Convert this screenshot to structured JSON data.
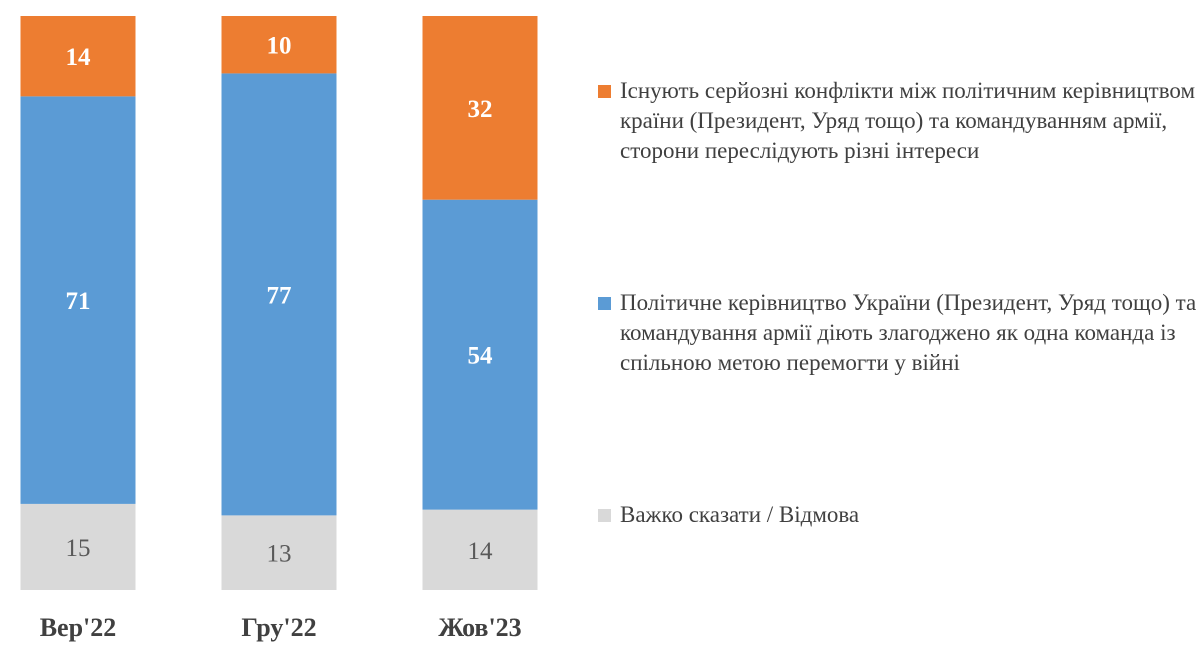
{
  "chart_data": {
    "type": "bar",
    "stacked": true,
    "categories": [
      "Вер'22",
      "Гру'22",
      "Жов'23"
    ],
    "series": [
      {
        "name": "Важко сказати / Відмова",
        "values": [
          15,
          13,
          14
        ],
        "color": "#d9d9d9",
        "label_color": "#595959"
      },
      {
        "name": "Політичне керівництво України (Президент, Уряд тощо) та командування армії діють злагоджено як одна команда із спільною метою перемогти у війні",
        "values": [
          71,
          77,
          54
        ],
        "color": "#5b9bd5",
        "label_color": "#ffffff"
      },
      {
        "name": "Існують серйозні конфлікти між політичним керівництвом країни (Президент, Уряд тощо) та командуванням армії, сторони переслідують різні інтереси",
        "values": [
          14,
          10,
          32
        ],
        "color": "#ed7d31",
        "label_color": "#ffffff"
      }
    ],
    "ylim": [
      0,
      100
    ],
    "legend_position": "right"
  },
  "legend": {
    "items": [
      {
        "label": "Існують серйозні конфлікти між політичним керівництвом країни (Президент, Уряд тощо) та командуванням армії, сторони переслідують різні інтереси",
        "color": "#ed7d31"
      },
      {
        "label": "Політичне керівництво України (Президент, Уряд тощо) та командування армії діють злагоджено як одна команда із спільною метою перемогти у війні",
        "color": "#5b9bd5"
      },
      {
        "label": "Важко сказати / Відмова",
        "color": "#d9d9d9"
      }
    ]
  }
}
